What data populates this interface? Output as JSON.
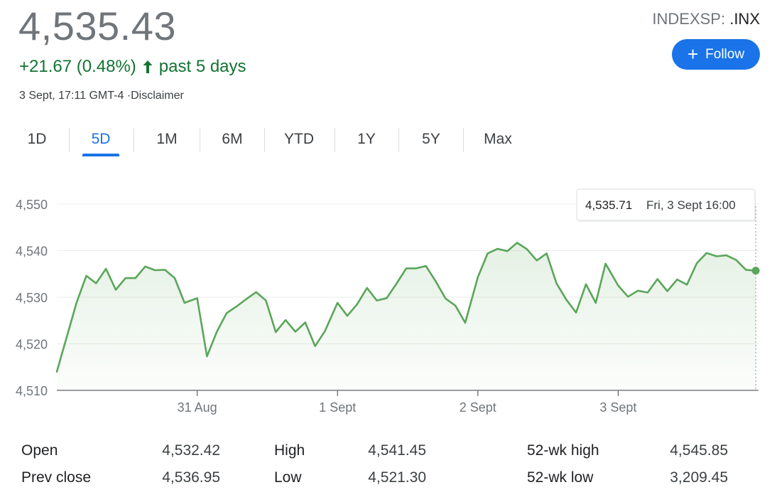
{
  "header": {
    "price": "4,535.43",
    "change": "+21.67 (0.48%)",
    "change_period": "past 5 days",
    "change_color": "#137333",
    "timestamp": "3 Sept, 17:11 GMT-4",
    "disclaimer": "·Disclaimer",
    "ticker_prefix": "INDEXSP: ",
    "ticker_symbol": ".INX",
    "follow_label": "Follow",
    "follow_icon": "plus-icon",
    "accent_color": "#1a73e8"
  },
  "tabs": [
    {
      "label": "1D",
      "active": false
    },
    {
      "label": "5D",
      "active": true
    },
    {
      "label": "1M",
      "active": false
    },
    {
      "label": "6M",
      "active": false
    },
    {
      "label": "YTD",
      "active": false
    },
    {
      "label": "1Y",
      "active": false
    },
    {
      "label": "5Y",
      "active": false
    },
    {
      "label": "Max",
      "active": false
    }
  ],
  "chart_data": {
    "type": "line",
    "title": "",
    "xlabel": "",
    "ylabel": "",
    "ylim": [
      4510,
      4550
    ],
    "y_ticks": [
      4510,
      4520,
      4530,
      4540,
      4550
    ],
    "y_tick_labels": [
      "4,510",
      "4,520",
      "4,530",
      "4,540",
      "4,550"
    ],
    "x_range": [
      0,
      5
    ],
    "x_ticks": [
      1,
      2,
      3,
      4
    ],
    "x_tick_labels": [
      "31 Aug",
      "1 Sept",
      "2 Sept",
      "3 Sept"
    ],
    "grid": true,
    "line_color": "#5aa65a",
    "series": [
      {
        "x": [
          0.0,
          0.14,
          0.21,
          0.28,
          0.35,
          0.42,
          0.49,
          0.56,
          0.63,
          0.7,
          0.77,
          0.84,
          0.91,
          1.0,
          1.07,
          1.14,
          1.21,
          1.28,
          1.35,
          1.42,
          1.49,
          1.56,
          1.63,
          1.7,
          1.77,
          1.84,
          1.91,
          2.0,
          2.07,
          2.14,
          2.21,
          2.28,
          2.35,
          2.42,
          2.49,
          2.56,
          2.63,
          2.7,
          2.77,
          2.84,
          2.91,
          3.0,
          3.07,
          3.14,
          3.21,
          3.28,
          3.35,
          3.42,
          3.49,
          3.56,
          3.63,
          3.7,
          3.77,
          3.84,
          3.91,
          4.0,
          4.07,
          4.14,
          4.21,
          4.28,
          4.35,
          4.42,
          4.49,
          4.56,
          4.63,
          4.7,
          4.77,
          4.84,
          4.91,
          4.98
        ],
        "values": [
          4514.0,
          4528.8,
          4534.6,
          4533.0,
          4536.1,
          4531.6,
          4534.1,
          4534.1,
          4536.6,
          4535.8,
          4535.9,
          4534.1,
          4528.8,
          4529.8,
          4517.3,
          4522.6,
          4526.6,
          4528.0,
          4529.6,
          4531.1,
          4529.3,
          4522.5,
          4525.1,
          4522.6,
          4524.6,
          4519.5,
          4522.7,
          4528.8,
          4526.0,
          4528.5,
          4532.0,
          4529.3,
          4529.8,
          4532.9,
          4536.2,
          4536.2,
          4536.7,
          4533.4,
          4529.7,
          4528.2,
          4524.5,
          4534.3,
          4539.4,
          4540.4,
          4539.9,
          4541.7,
          4540.3,
          4537.9,
          4539.4,
          4533.0,
          4529.5,
          4526.7,
          4532.8,
          4528.8,
          4537.2,
          4532.5,
          4530.1,
          4531.4,
          4531.0,
          4533.9,
          4531.3,
          4533.8,
          4532.7,
          4537.3,
          4539.5,
          4538.8,
          4539.0,
          4538.0,
          4535.9,
          4535.7
        ]
      }
    ],
    "tooltip": {
      "value": "4,535.71",
      "time": "Fri, 3 Sept 16:00"
    }
  },
  "stats": {
    "left": [
      {
        "label": "Open",
        "value": "4,532.42"
      },
      {
        "label": "Prev close",
        "value": "4,536.95"
      }
    ],
    "middle": [
      {
        "label": "High",
        "value": "4,541.45"
      },
      {
        "label": "Low",
        "value": "4,521.30"
      }
    ],
    "right": [
      {
        "label": "52-wk high",
        "value": "4,545.85"
      },
      {
        "label": "52-wk low",
        "value": "3,209.45"
      }
    ]
  }
}
